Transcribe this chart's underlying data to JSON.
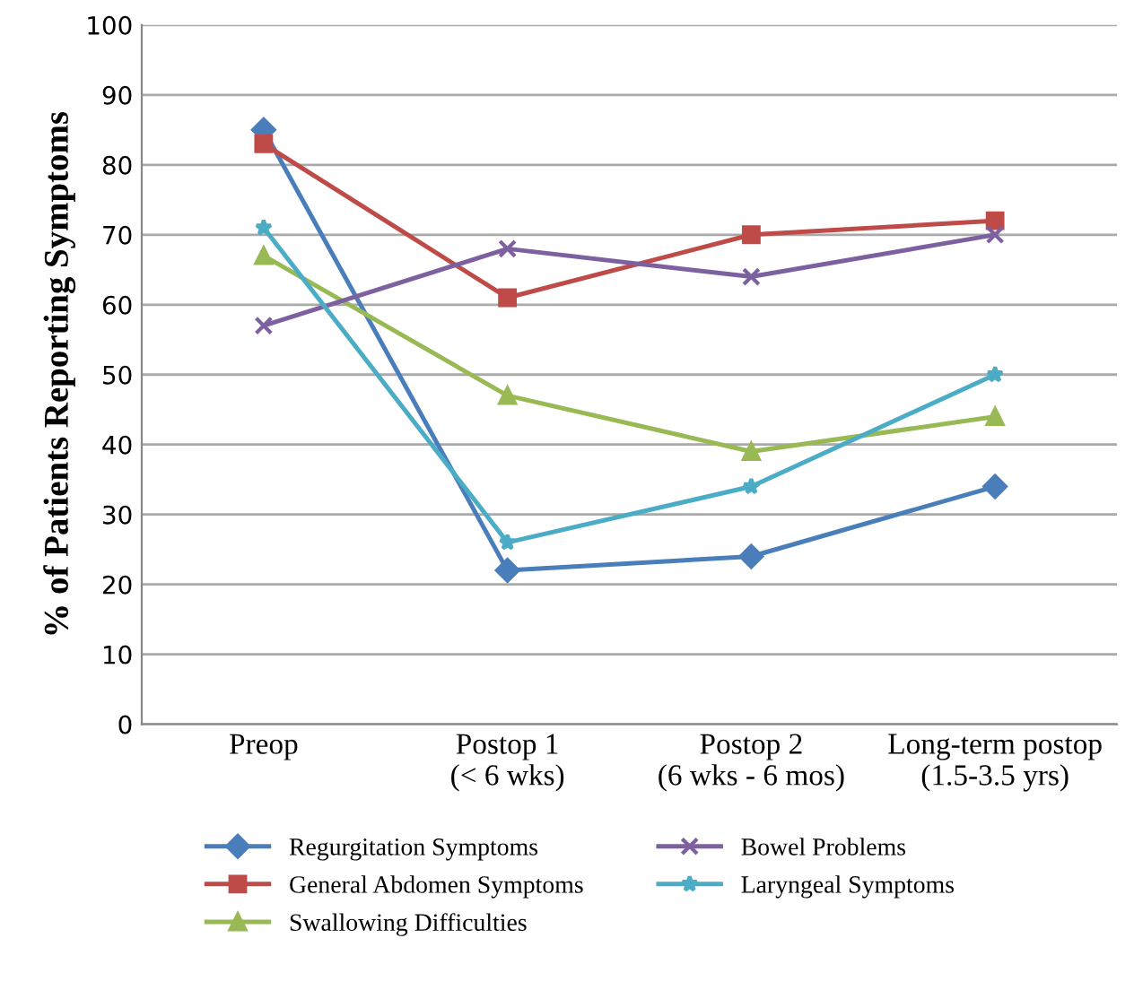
{
  "chart_data": {
    "type": "line",
    "ylabel": "% of Patients Reporting Symptoms",
    "categories": [
      "Preop",
      "Postop 1\n(< 6 wks)",
      "Postop 2\n(6 wks - 6 mos)",
      "Long-term postop\n(1.5-3.5 yrs)"
    ],
    "ylim": [
      0,
      100
    ],
    "yticks": [
      0,
      10,
      20,
      30,
      40,
      50,
      60,
      70,
      80,
      90,
      100
    ],
    "grid": "y",
    "legend": "bottom",
    "line_style": "solid",
    "series": [
      {
        "name": "Regurgitation Symptoms",
        "color": "#4a7ebb",
        "marker": "diamond",
        "values": [
          85,
          22,
          24,
          34
        ]
      },
      {
        "name": "General Abdomen Symptoms",
        "color": "#be4b48",
        "marker": "square",
        "values": [
          83,
          61,
          70,
          72
        ]
      },
      {
        "name": "Swallowing Difficulties",
        "color": "#98b954",
        "marker": "triangle",
        "values": [
          67,
          47,
          39,
          44
        ]
      },
      {
        "name": "Bowel Problems",
        "color": "#7d60a0",
        "marker": "cross",
        "values": [
          57,
          68,
          64,
          70
        ]
      },
      {
        "name": "Laryngeal Symptoms",
        "color": "#4bacc6",
        "marker": "star",
        "values": [
          71,
          26,
          34,
          50
        ]
      }
    ]
  }
}
